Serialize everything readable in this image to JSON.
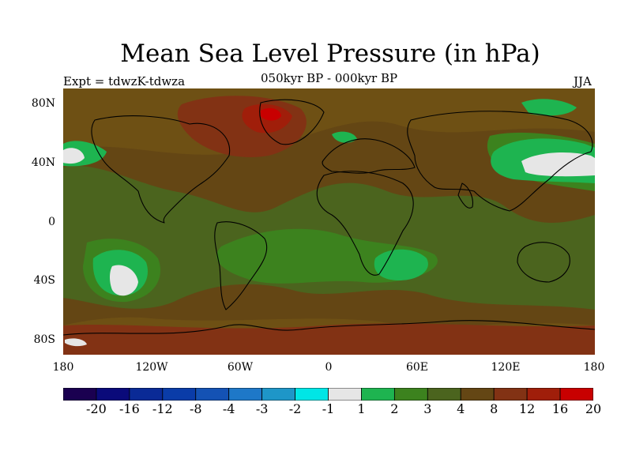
{
  "title": "Mean Sea Level Pressure (in hPa)",
  "subtitle": "050kyr BP - 000kyr BP",
  "experiment": "Expt = tdwzK-tdwza",
  "season": "JJA",
  "axes": {
    "y_ticks": [
      "80N",
      "40N",
      "0",
      "40S",
      "80S"
    ],
    "x_ticks": [
      "180",
      "120W",
      "60W",
      "0",
      "60E",
      "120E",
      "180"
    ]
  },
  "colorbar": {
    "labels": [
      "-20",
      "-16",
      "-12",
      "-8",
      "-4",
      "-3",
      "-2",
      "-1",
      "1",
      "2",
      "3",
      "4",
      "8",
      "12",
      "16",
      "20"
    ],
    "colors": [
      "#1a0050",
      "#0a0a7a",
      "#0a2a96",
      "#0a3ca8",
      "#1452b4",
      "#1e78c8",
      "#1e96c8",
      "#00e6e6",
      "#e6e6e6",
      "#1eb450",
      "#3c821e",
      "#4b641e",
      "#644614",
      "#823214",
      "#a01e0a",
      "#c80000"
    ]
  },
  "map_colors": {
    "background": "#6e5014",
    "band_4_8": "#644614",
    "band_3_4": "#4b641e",
    "band_2_3": "#3c821e",
    "band_1_2": "#1eb450",
    "band_m1_1": "#e6e6e6",
    "band_8_12": "#823214",
    "band_12_16": "#a01e0a",
    "band_16_20": "#c80000"
  }
}
